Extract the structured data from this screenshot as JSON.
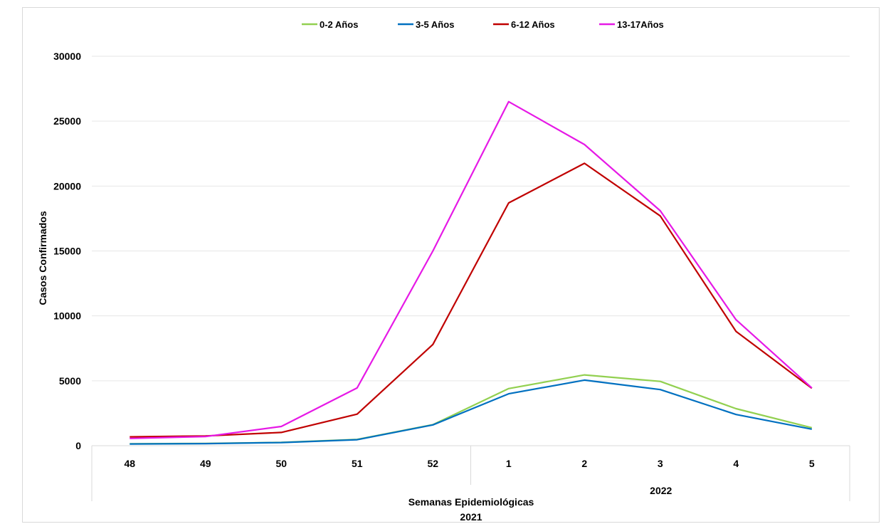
{
  "chart_data": {
    "type": "line",
    "xlabel": "Semanas Epidemiológicas",
    "ylabel": "Casos Confirmados",
    "year_labels": [
      "2021",
      "2022"
    ],
    "categories": [
      "48",
      "49",
      "50",
      "51",
      "52",
      "1",
      "2",
      "3",
      "4",
      "5"
    ],
    "category_year": [
      "2021",
      "2021",
      "2021",
      "2021",
      "2021",
      "2022",
      "2022",
      "2022",
      "2022",
      "2022"
    ],
    "ylim": [
      0,
      30000
    ],
    "yticks": [
      0,
      5000,
      10000,
      15000,
      20000,
      25000,
      30000
    ],
    "grid": true,
    "legend_position": "top",
    "series": [
      {
        "name": "0-2 Años",
        "color": "#92d050",
        "values": [
          150,
          170,
          250,
          480,
          1620,
          4400,
          5450,
          4950,
          2850,
          1380
        ]
      },
      {
        "name": "3-5 Años",
        "color": "#0070c0",
        "values": [
          130,
          160,
          240,
          460,
          1600,
          4000,
          5050,
          4320,
          2400,
          1270
        ]
      },
      {
        "name": "6-12 Años",
        "color": "#c00000",
        "values": [
          680,
          750,
          1020,
          2430,
          7800,
          18700,
          21750,
          17700,
          8800,
          4420
        ]
      },
      {
        "name": "13-17Años",
        "color": "#e619e6",
        "values": [
          560,
          700,
          1480,
          4450,
          15000,
          26500,
          23200,
          18100,
          9700,
          4450
        ]
      }
    ]
  }
}
